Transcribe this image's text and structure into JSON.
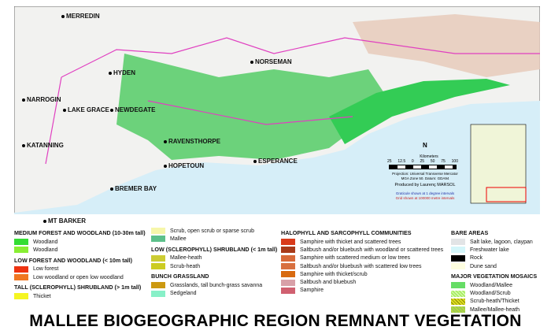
{
  "title": "MALLEE BIOGEOGRAPHIC REGION REMNANT VEGETATION",
  "towns": [
    "MERREDIN",
    "HYDEN",
    "NARROGIN",
    "LAKE GRACE",
    "NEWDEGATE",
    "NORSEMAN",
    "KATANNING",
    "RAVENSTHORPE",
    "HOPETOUN",
    "ESPERANCE",
    "BREMER BAY",
    "MT BARKER"
  ],
  "scale": {
    "unit": "Kilometers",
    "ticks": [
      "25",
      "12.5",
      "0",
      "25",
      "50",
      "75",
      "100"
    ],
    "projection": "Projection: Universal Transverse Mercator",
    "datum": "MGA Zone 50. Datum: GDA94",
    "author": "Produced by Laurenç MARSOL",
    "graticule": "Graticule shown at 1 degree intervals",
    "grid": "Grid shown at 100000 metre intervals",
    "north": "N"
  },
  "legend": {
    "medium_forest": {
      "title": "MEDIUM FOREST AND WOODLAND (10-30m tall)",
      "items": [
        {
          "label": "Woodland",
          "color": "#33dd33"
        },
        {
          "label": "Woodland",
          "color": "#88ee33"
        }
      ]
    },
    "low_forest": {
      "title": "LOW FOREST AND WOODLAND (< 10m tall)",
      "items": [
        {
          "label": "Low forest",
          "color": "#ee3311"
        },
        {
          "label": "Low woodland or open low woodland",
          "color": "#f07722"
        }
      ]
    },
    "tall_shrub": {
      "title": "TALL (SCLEROPHYLL) SHRUBLAND (> 1m tall)",
      "items": [
        {
          "label": "Thicket",
          "color": "#f5f522"
        },
        {
          "label": "Scrub, open scrub or sparse scrub",
          "color": "#f6f6aa"
        },
        {
          "label": "Mallee",
          "color": "#5cc08a"
        }
      ]
    },
    "low_shrub": {
      "title": "LOW (SCLEROPHYLL) SHRUBLAND (< 1m tall)",
      "items": [
        {
          "label": "Mallee-heath",
          "color": "#cccc33"
        },
        {
          "label": "Scrub-heath",
          "color": "#cccc22"
        }
      ]
    },
    "grass": {
      "title": "BUNCH GRASSLAND",
      "items": [
        {
          "label": "Grasslands, tall bunch-grass savanna",
          "color": "#cc9911"
        },
        {
          "label": "Sedgeland",
          "color": "#88f0c8"
        }
      ]
    },
    "halo": {
      "title": "HALOPHYLL AND SARCOPHYLL COMMUNITIES",
      "items": [
        {
          "label": "Samphire with thicket and scattered trees",
          "color": "#d93a1a"
        },
        {
          "label": "Saltbush and/or bluebush with woodland or scattered trees",
          "color": "#a83a1a"
        },
        {
          "label": "Samphire with scattered medium or low trees",
          "color": "#d86a3a"
        },
        {
          "label": "Saltbush and/or bluebush with scattered low trees",
          "color": "#d87040"
        },
        {
          "label": "Samphire with thicket/scrub",
          "color": "#d86a10"
        },
        {
          "label": "Saltbush and bluebush",
          "color": "#d8a0a8"
        },
        {
          "label": "Samphire",
          "color": "#d06070"
        }
      ]
    },
    "bare": {
      "title": "BARE AREAS",
      "items": [
        {
          "label": "Salt lake, lagoon, claypan",
          "color": "#e2e4e6"
        },
        {
          "label": "Freshwater lake",
          "color": "#d4f6fa"
        },
        {
          "label": "Rock",
          "color": "#000000"
        },
        {
          "label": "Dune sand",
          "color": "#fefee0"
        }
      ]
    },
    "mosaics": {
      "title": "MAJOR VEGETATION MOSAICS",
      "items": [
        {
          "label": "Woodland/Mallee",
          "color": "#66dd66"
        },
        {
          "label": "Woodland/Scrub",
          "color": "#aaee66"
        },
        {
          "label": "Scrub-heath/Thicket",
          "color": "#dddd22"
        },
        {
          "label": "Mallee/Mallee-heath",
          "color": "#99cc55"
        }
      ]
    }
  }
}
